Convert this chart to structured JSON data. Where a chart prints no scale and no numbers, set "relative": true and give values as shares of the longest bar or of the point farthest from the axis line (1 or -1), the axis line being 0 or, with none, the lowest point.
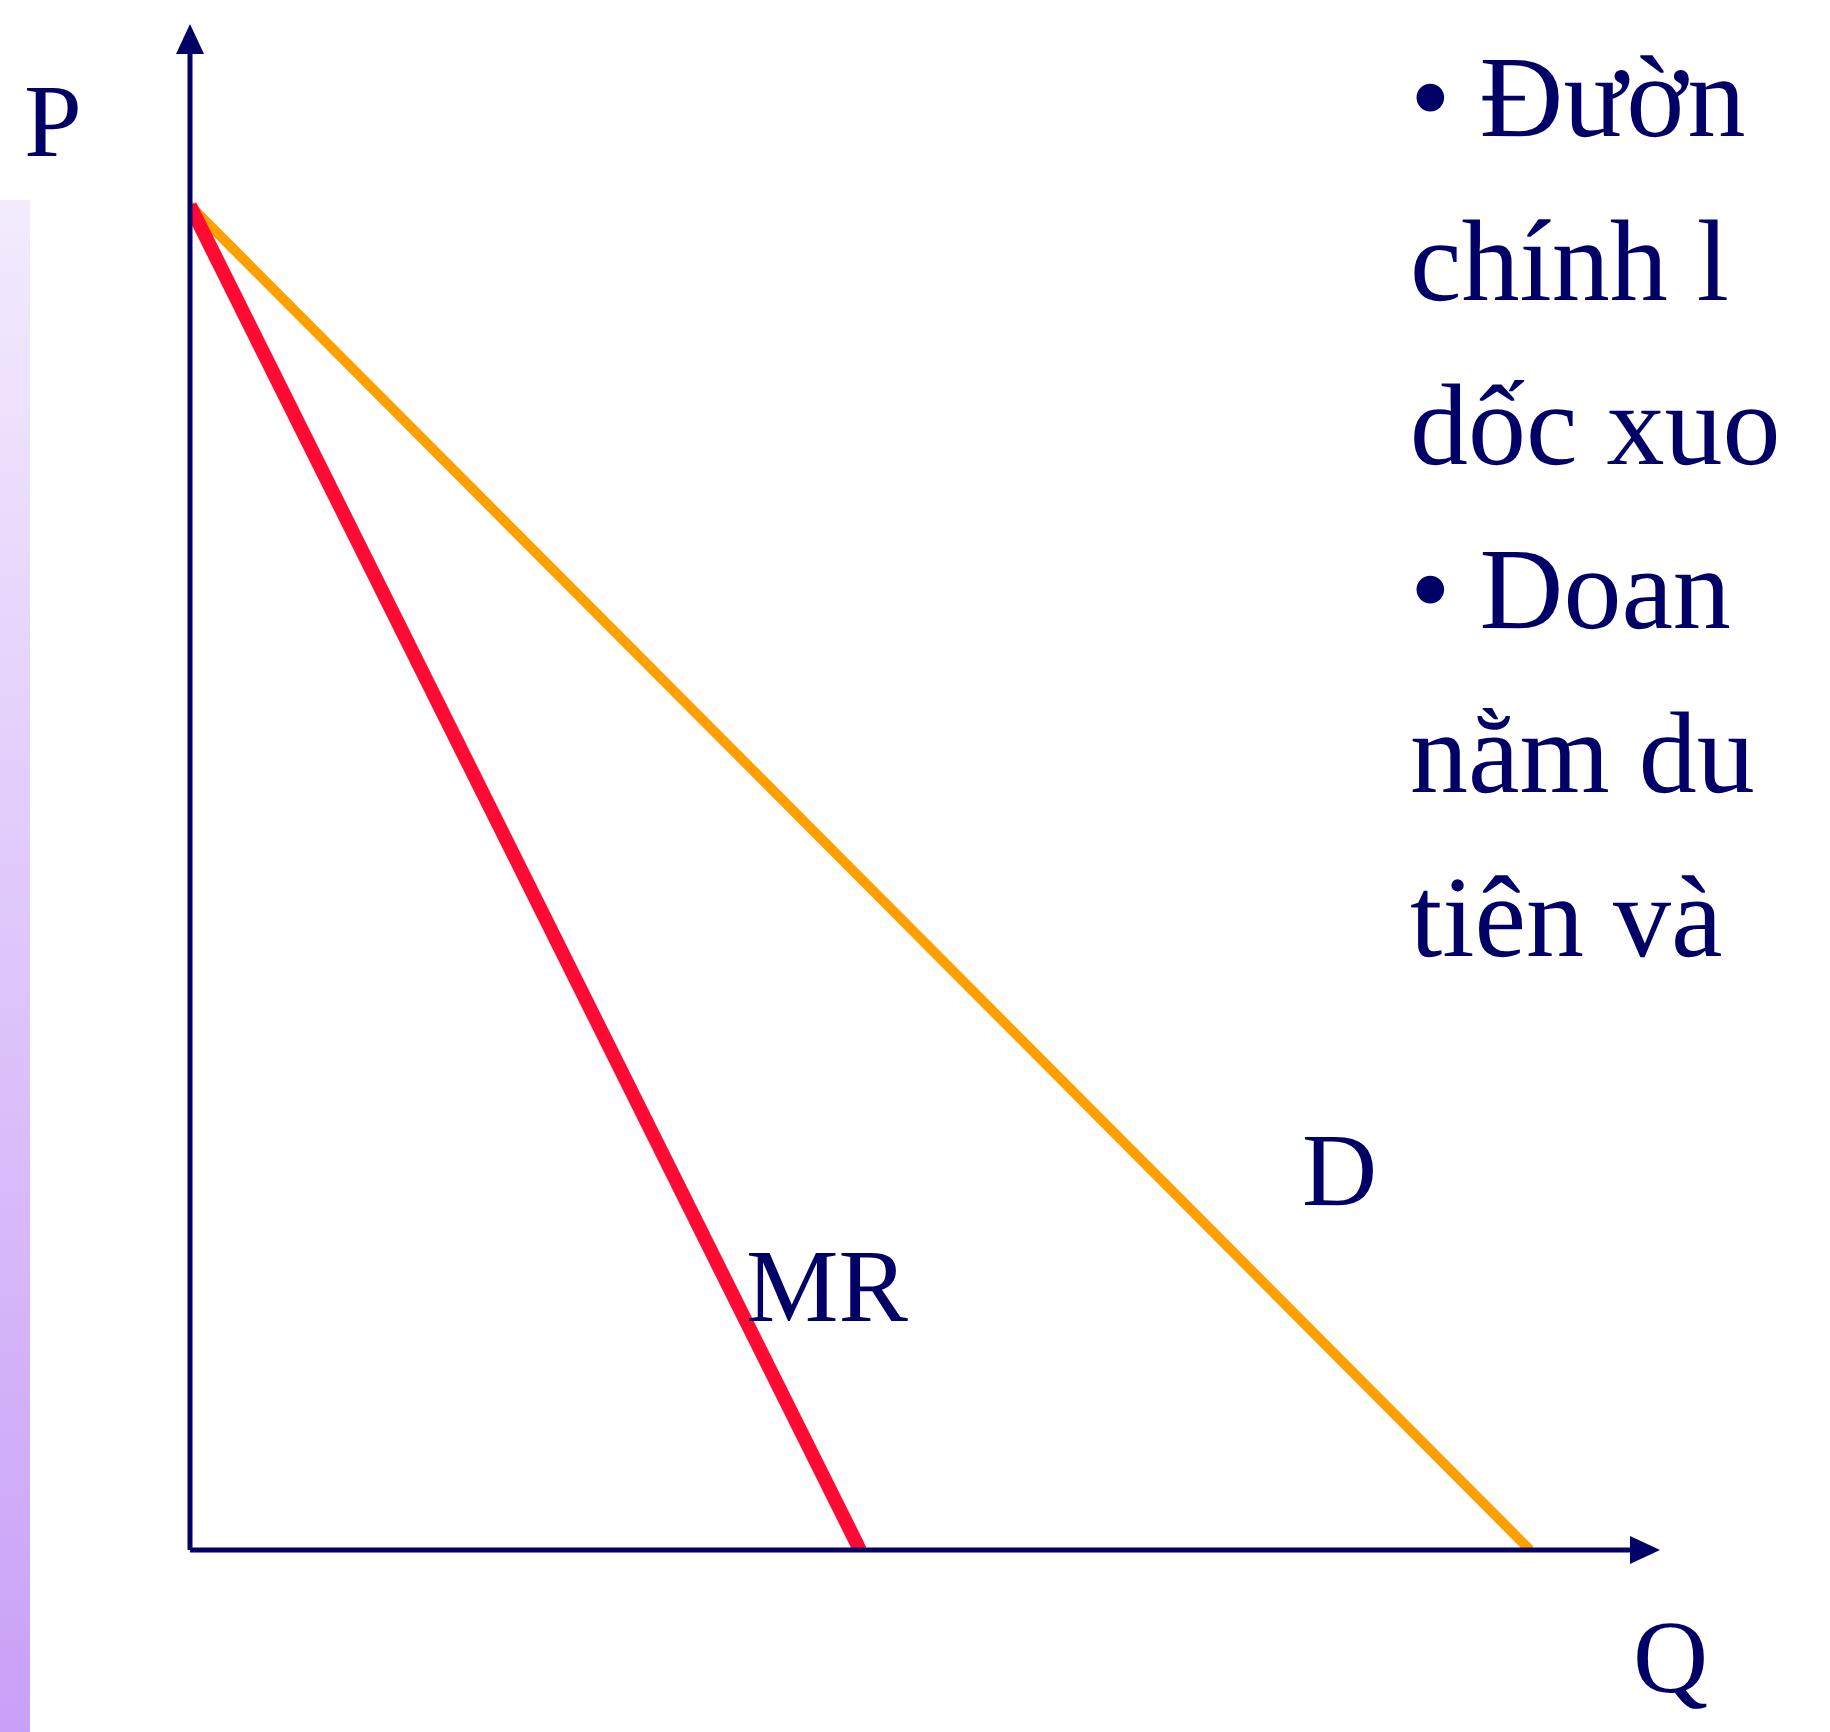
{
  "chart_data": {
    "type": "line",
    "relative": true,
    "xlabel": "Q",
    "ylabel": "P",
    "categories": [
      null,
      null,
      null
    ],
    "series": [
      {
        "name": "MR",
        "color": "#ff0a33",
        "values": [
          1,
          0,
          null
        ]
      },
      {
        "name": "D",
        "color": "#ff9f00",
        "values": [
          1,
          0.5,
          0
        ]
      }
    ],
    "annotations": [
      "• Đườn",
      "chính l",
      "dốc xuo",
      "• Doan",
      "nằm du",
      "tiên và"
    ]
  }
}
